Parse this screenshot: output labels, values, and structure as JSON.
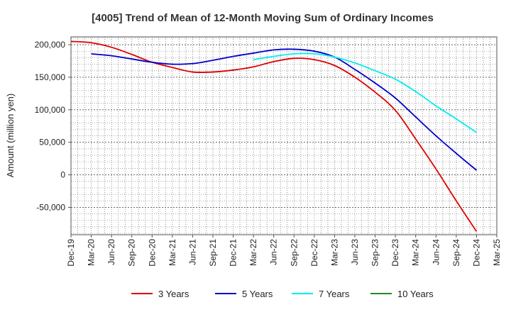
{
  "chart_data": {
    "type": "line",
    "title": "[4005]  Trend of Mean of 12-Month Moving Sum of Ordinary Incomes",
    "xlabel": "",
    "ylabel": "Amount (million yen)",
    "ylim": [
      -92000,
      212000
    ],
    "yticks": [
      200000,
      150000,
      100000,
      50000,
      0,
      -50000
    ],
    "ytick_labels": [
      "200,000",
      "150,000",
      "100,000",
      "50,000",
      "0",
      "-50,000"
    ],
    "x_range": [
      0,
      63
    ],
    "xtick_positions": [
      0,
      3,
      6,
      9,
      12,
      15,
      18,
      21,
      24,
      27,
      30,
      33,
      36,
      39,
      42,
      45,
      48,
      51,
      54,
      57,
      60,
      63
    ],
    "xtick_labels": [
      "Dec-19",
      "Mar-20",
      "Jun-20",
      "Sep-20",
      "Dec-20",
      "Mar-21",
      "Jun-21",
      "Sep-21",
      "Dec-21",
      "Mar-22",
      "Jun-22",
      "Sep-22",
      "Dec-22",
      "Mar-23",
      "Jun-23",
      "Sep-23",
      "Dec-23",
      "Mar-24",
      "Jun-24",
      "Sep-24",
      "Dec-24",
      "Mar-25"
    ],
    "grid": true,
    "legend_position": "bottom",
    "series": [
      {
        "name": "3 Years",
        "color": "#dd0000",
        "x": [
          0,
          3,
          6,
          9,
          12,
          15,
          18,
          21,
          24,
          27,
          30,
          33,
          36,
          39,
          42,
          45,
          48,
          51,
          54,
          57,
          60
        ],
        "values": [
          205000,
          203000,
          196000,
          185000,
          173000,
          165000,
          158000,
          158000,
          161000,
          166000,
          174000,
          179000,
          177000,
          168000,
          150000,
          127000,
          99000,
          55000,
          9000,
          -40000,
          -87000
        ]
      },
      {
        "name": "5 Years",
        "color": "#0000cc",
        "x": [
          3,
          6,
          9,
          12,
          15,
          18,
          21,
          24,
          27,
          30,
          33,
          36,
          39,
          42,
          45,
          48,
          51,
          54,
          57,
          60
        ],
        "values": [
          186000,
          183000,
          178000,
          173000,
          170000,
          171000,
          176000,
          182000,
          187000,
          192000,
          193000,
          190000,
          181000,
          162000,
          141000,
          118000,
          89000,
          60000,
          33000,
          7000
        ]
      },
      {
        "name": "7 Years",
        "color": "#00eeee",
        "x": [
          27,
          30,
          33,
          36,
          39,
          42,
          45,
          48,
          51,
          54,
          57,
          60
        ],
        "values": [
          177000,
          182000,
          186000,
          186000,
          181000,
          172000,
          160000,
          147000,
          128000,
          106000,
          86000,
          65000
        ]
      },
      {
        "name": "10 Years",
        "color": "#228b22",
        "x": [],
        "values": []
      }
    ]
  }
}
